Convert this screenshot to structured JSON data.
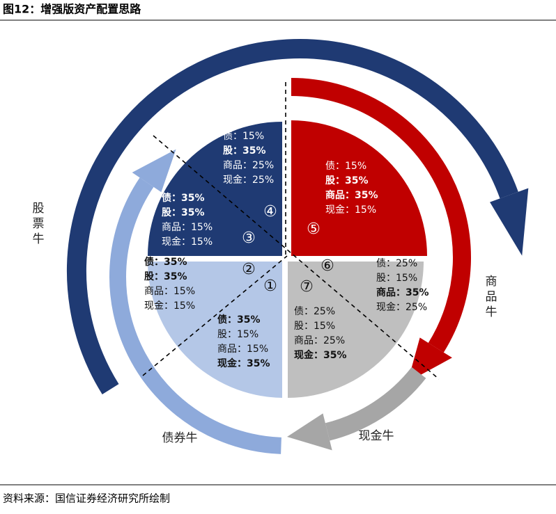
{
  "header": {
    "title": "图12：增强版资产配置思路"
  },
  "cycles": [
    {
      "label": "股票牛"
    },
    {
      "label": "商品牛"
    },
    {
      "label": "现金牛"
    },
    {
      "label": "债券牛"
    }
  ],
  "groups": [
    {
      "number": "①",
      "items": [
        {
          "asset": "债：",
          "weight": "35%",
          "bold": true
        },
        {
          "asset": "股：",
          "weight": "15%",
          "bold": false
        },
        {
          "asset": "商品：",
          "weight": "15%",
          "bold": false
        },
        {
          "asset": "现金：",
          "weight": "35%",
          "bold": true
        }
      ]
    },
    {
      "number": "②",
      "items": [
        {
          "asset": "债：",
          "weight": "35%",
          "bold": true
        },
        {
          "asset": "股：",
          "weight": "35%",
          "bold": true
        },
        {
          "asset": "商品：",
          "weight": "15%",
          "bold": false
        },
        {
          "asset": "现金：",
          "weight": "15%",
          "bold": false
        }
      ]
    },
    {
      "number": "③",
      "items": [
        {
          "asset": "债：",
          "weight": "35%",
          "bold": true
        },
        {
          "asset": "股：",
          "weight": "35%",
          "bold": true
        },
        {
          "asset": "商品：",
          "weight": "15%",
          "bold": false
        },
        {
          "asset": "现金：",
          "weight": "15%",
          "bold": false
        }
      ]
    },
    {
      "number": "④",
      "items": [
        {
          "asset": "债：",
          "weight": "15%",
          "bold": false
        },
        {
          "asset": "股：",
          "weight": "35%",
          "bold": true
        },
        {
          "asset": "商品：",
          "weight": "25%",
          "bold": false
        },
        {
          "asset": "现金：",
          "weight": "25%",
          "bold": false
        }
      ]
    },
    {
      "number": "⑤",
      "items": [
        {
          "asset": "债：",
          "weight": "15%",
          "bold": false
        },
        {
          "asset": "股：",
          "weight": "35%",
          "bold": true
        },
        {
          "asset": "商品：",
          "weight": "35%",
          "bold": true
        },
        {
          "asset": "现金：",
          "weight": "15%",
          "bold": false
        }
      ]
    },
    {
      "number": "⑥",
      "items": [
        {
          "asset": "债：",
          "weight": "25%",
          "bold": false
        },
        {
          "asset": "股：",
          "weight": "15%",
          "bold": false
        },
        {
          "asset": "商品：",
          "weight": "35%",
          "bold": true
        },
        {
          "asset": "现金：",
          "weight": "25%",
          "bold": false
        }
      ]
    },
    {
      "number": "⑦",
      "items": [
        {
          "asset": "债：",
          "weight": "25%",
          "bold": false
        },
        {
          "asset": "股：",
          "weight": "15%",
          "bold": false
        },
        {
          "asset": "商品：",
          "weight": "25%",
          "bold": false
        },
        {
          "asset": "现金：",
          "weight": "35%",
          "bold": true
        }
      ]
    }
  ],
  "footer": {
    "source": "资料来源：国信证券经济研究所绘制"
  }
}
